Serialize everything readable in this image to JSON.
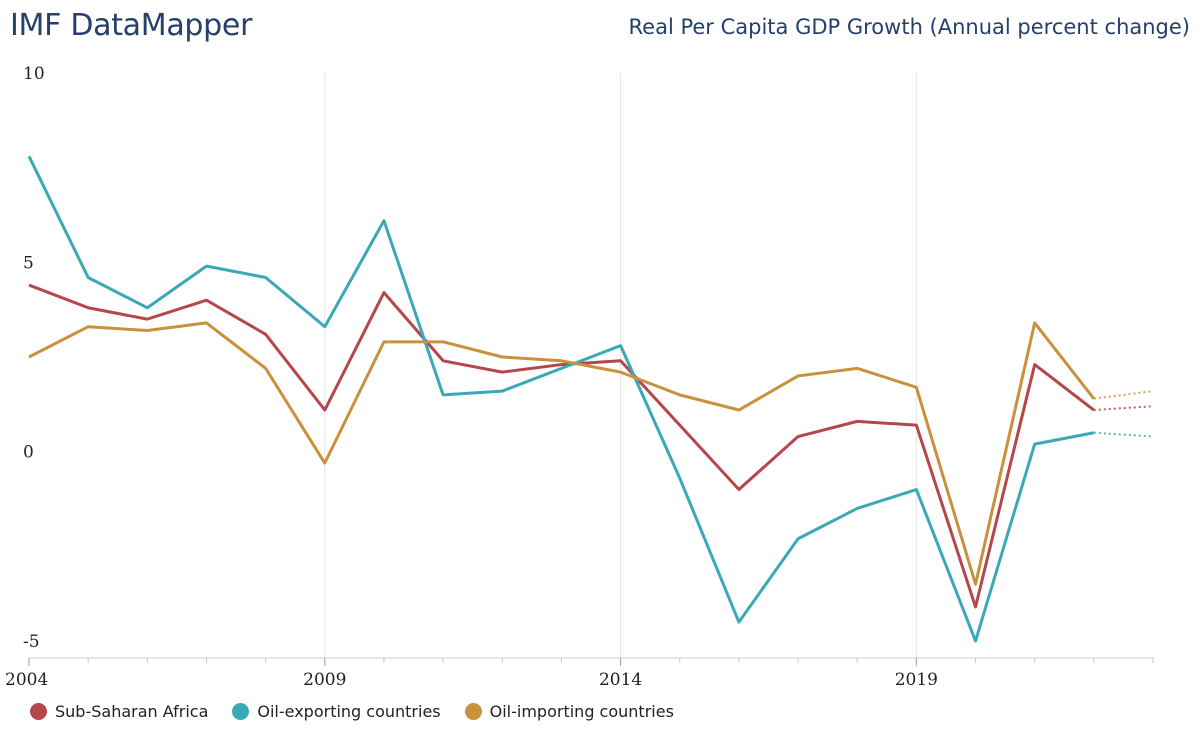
{
  "header": {
    "brand": "IMF DataMapper",
    "title": "Real Per Capita GDP Growth (Annual percent change)"
  },
  "chart_data": {
    "type": "line",
    "title": "Real Per Capita GDP Growth (Annual percent change)",
    "xlabel": "",
    "ylabel": "",
    "x": [
      2004,
      2005,
      2006,
      2007,
      2008,
      2009,
      2010,
      2011,
      2012,
      2013,
      2014,
      2015,
      2016,
      2017,
      2018,
      2019,
      2020,
      2021,
      2022,
      2023
    ],
    "xlim": [
      2004,
      2023
    ],
    "ylim": [
      -5,
      10
    ],
    "x_tick_labels": [
      "2004",
      "2009",
      "2014",
      "2019"
    ],
    "y_tick_labels": [
      "10",
      "5",
      "0",
      "-5"
    ],
    "projection_start": 2022,
    "grid": "vertical",
    "legend_position": "bottom-left",
    "series": [
      {
        "name": "Sub-Saharan Africa",
        "color": "#b5474b",
        "values": [
          4.4,
          3.8,
          3.5,
          4.0,
          3.1,
          1.1,
          4.2,
          2.4,
          2.1,
          2.3,
          2.4,
          0.7,
          -1.0,
          0.4,
          0.8,
          0.7,
          -4.1,
          2.3,
          1.1,
          1.2
        ]
      },
      {
        "name": "Oil-exporting countries",
        "color": "#3aa9b7",
        "values": [
          7.8,
          4.6,
          3.8,
          4.9,
          4.6,
          3.3,
          6.1,
          1.5,
          1.6,
          2.2,
          2.8,
          -0.7,
          -4.5,
          -2.3,
          -1.5,
          -1.0,
          -5.0,
          0.2,
          0.5,
          0.4
        ]
      },
      {
        "name": "Oil-importing countries",
        "color": "#c9913d",
        "values": [
          2.5,
          3.3,
          3.2,
          3.4,
          2.2,
          -0.3,
          2.9,
          2.9,
          2.5,
          2.4,
          2.1,
          1.5,
          1.1,
          2.0,
          2.2,
          1.7,
          -3.5,
          3.4,
          1.4,
          1.6
        ]
      }
    ]
  }
}
